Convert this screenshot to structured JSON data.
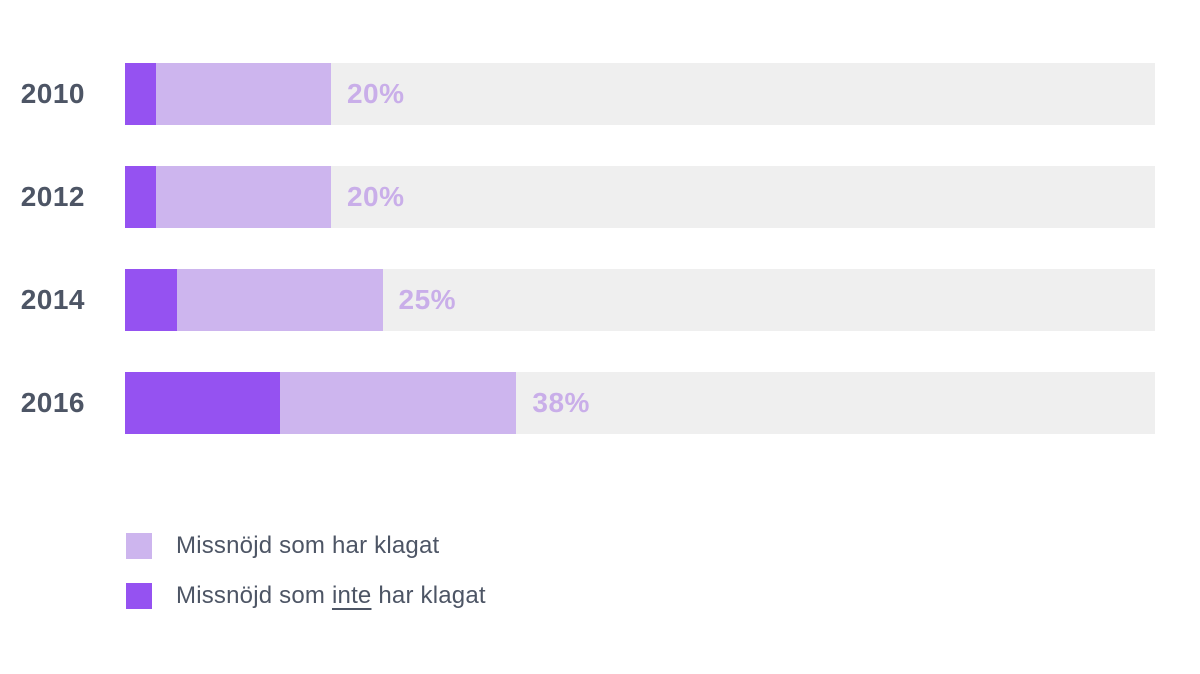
{
  "chart_data": {
    "type": "bar",
    "orientation": "horizontal",
    "stacked": true,
    "categories": [
      "2010",
      "2012",
      "2014",
      "2016"
    ],
    "series": [
      {
        "name": "Missnöjd som inte har klagat",
        "color_key": "dark",
        "values": [
          3,
          3,
          5,
          15
        ]
      },
      {
        "name": "Missnöjd som har klagat",
        "color_key": "light",
        "values": [
          17,
          17,
          20,
          23
        ]
      }
    ],
    "total_labels": [
      "20%",
      "20%",
      "25%",
      "38%"
    ],
    "xlim": [
      0,
      100
    ],
    "grid": false,
    "axis_labels": false,
    "legend_position": "bottom-left"
  },
  "legend": {
    "items": [
      {
        "swatch": "light",
        "pre": "Missnöjd som har klagat",
        "underline": "",
        "post": ""
      },
      {
        "swatch": "dark",
        "pre": "Missnöjd som ",
        "underline": "inte",
        "post": " har klagat"
      }
    ]
  },
  "colors": {
    "dark": "#9552f1",
    "light": "#cdb5ee",
    "track": "#efefef",
    "year_label": "#4d5565",
    "pct_label": "#c9aee9",
    "legend_text": "#4d5565",
    "background": "#ffffff"
  }
}
